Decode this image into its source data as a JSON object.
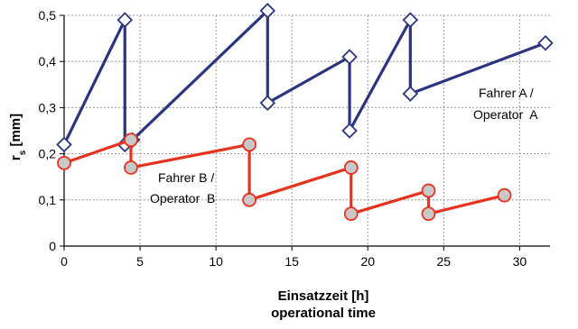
{
  "chart_data": {
    "type": "line",
    "xlabel": "Einsatzzeit [h]",
    "xlabel_2": "operational time",
    "ylabel": "r",
    "ylabel_sub": "s",
    "ylabel_unit": " [mm]",
    "xlim": [
      0,
      32
    ],
    "ylim": [
      0,
      0.5
    ],
    "x_ticks": [
      "0",
      "5",
      "10",
      "15",
      "20",
      "25",
      "30"
    ],
    "y_ticks": [
      "0",
      "0,1",
      "0,2",
      "0,3",
      "0,4",
      "0,5"
    ],
    "grid": true,
    "series": [
      {
        "name": "Fahrer A / Operator A",
        "label_lines": [
          "Fahrer A /",
          "Operator  A"
        ],
        "color": "#2b3480",
        "marker": "diamond",
        "points": [
          [
            0,
            0.22
          ],
          [
            4.0,
            0.49
          ],
          [
            4.0,
            0.22
          ],
          [
            4.5,
            0.23
          ],
          [
            13.4,
            0.51
          ],
          [
            13.4,
            0.31
          ],
          [
            18.8,
            0.41
          ],
          [
            18.8,
            0.25
          ],
          [
            22.8,
            0.49
          ],
          [
            22.8,
            0.33
          ],
          [
            31.7,
            0.44
          ]
        ]
      },
      {
        "name": "Fahrer B / Operator B",
        "label_lines": [
          "Fahrer B /",
          "Operator  B"
        ],
        "color": "#e8321e",
        "marker": "circle",
        "points": [
          [
            0,
            0.18
          ],
          [
            4.4,
            0.23
          ],
          [
            4.4,
            0.17
          ],
          [
            12.2,
            0.22
          ],
          [
            12.2,
            0.1
          ],
          [
            18.9,
            0.17
          ],
          [
            18.9,
            0.07
          ],
          [
            24.0,
            0.12
          ],
          [
            24.0,
            0.07
          ],
          [
            29.0,
            0.11
          ]
        ]
      }
    ]
  }
}
